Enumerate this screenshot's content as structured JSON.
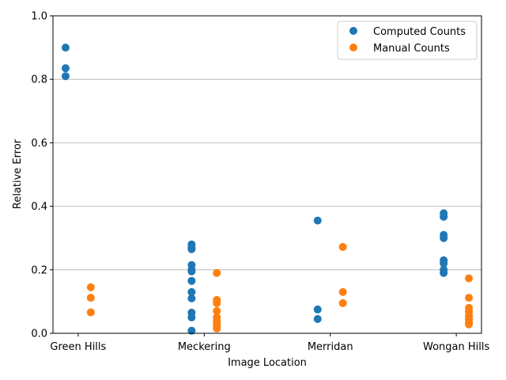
{
  "chart_data": {
    "type": "scatter",
    "title": "",
    "xlabel": "Image Location",
    "ylabel": "Relative Error",
    "categories": [
      "Green Hills",
      "Meckering",
      "Merridan",
      "Wongan Hills"
    ],
    "ylim": [
      0,
      1.0
    ],
    "yticks": [
      "0.0",
      "0.2",
      "0.4",
      "0.6",
      "0.8",
      "1.0"
    ],
    "grid": "horizontal",
    "legend_position": "top-right",
    "series": [
      {
        "name": "Computed Counts",
        "color": "#1f77b4",
        "offset": -0.1,
        "points": [
          {
            "category": "Green Hills",
            "values": [
              0.9,
              0.835,
              0.81
            ]
          },
          {
            "category": "Meckering",
            "values": [
              0.28,
              0.27,
              0.265,
              0.215,
              0.2,
              0.195,
              0.165,
              0.13,
              0.11,
              0.065,
              0.05,
              0.008
            ]
          },
          {
            "category": "Merridan",
            "values": [
              0.355,
              0.075,
              0.045
            ]
          },
          {
            "category": "Wongan Hills",
            "values": [
              0.378,
              0.367,
              0.31,
              0.3,
              0.23,
              0.22,
              0.2,
              0.19
            ]
          }
        ]
      },
      {
        "name": "Manual Counts",
        "color": "#ff7f0e",
        "offset": 0.1,
        "points": [
          {
            "category": "Green Hills",
            "values": [
              0.145,
              0.112,
              0.066
            ]
          },
          {
            "category": "Meckering",
            "values": [
              0.19,
              0.105,
              0.095,
              0.07,
              0.05,
              0.04,
              0.03,
              0.02,
              0.015
            ]
          },
          {
            "category": "Merridan",
            "values": [
              0.272,
              0.13,
              0.095
            ]
          },
          {
            "category": "Wongan Hills",
            "values": [
              0.173,
              0.112,
              0.08,
              0.068,
              0.055,
              0.045,
              0.035,
              0.028
            ]
          }
        ]
      }
    ]
  }
}
